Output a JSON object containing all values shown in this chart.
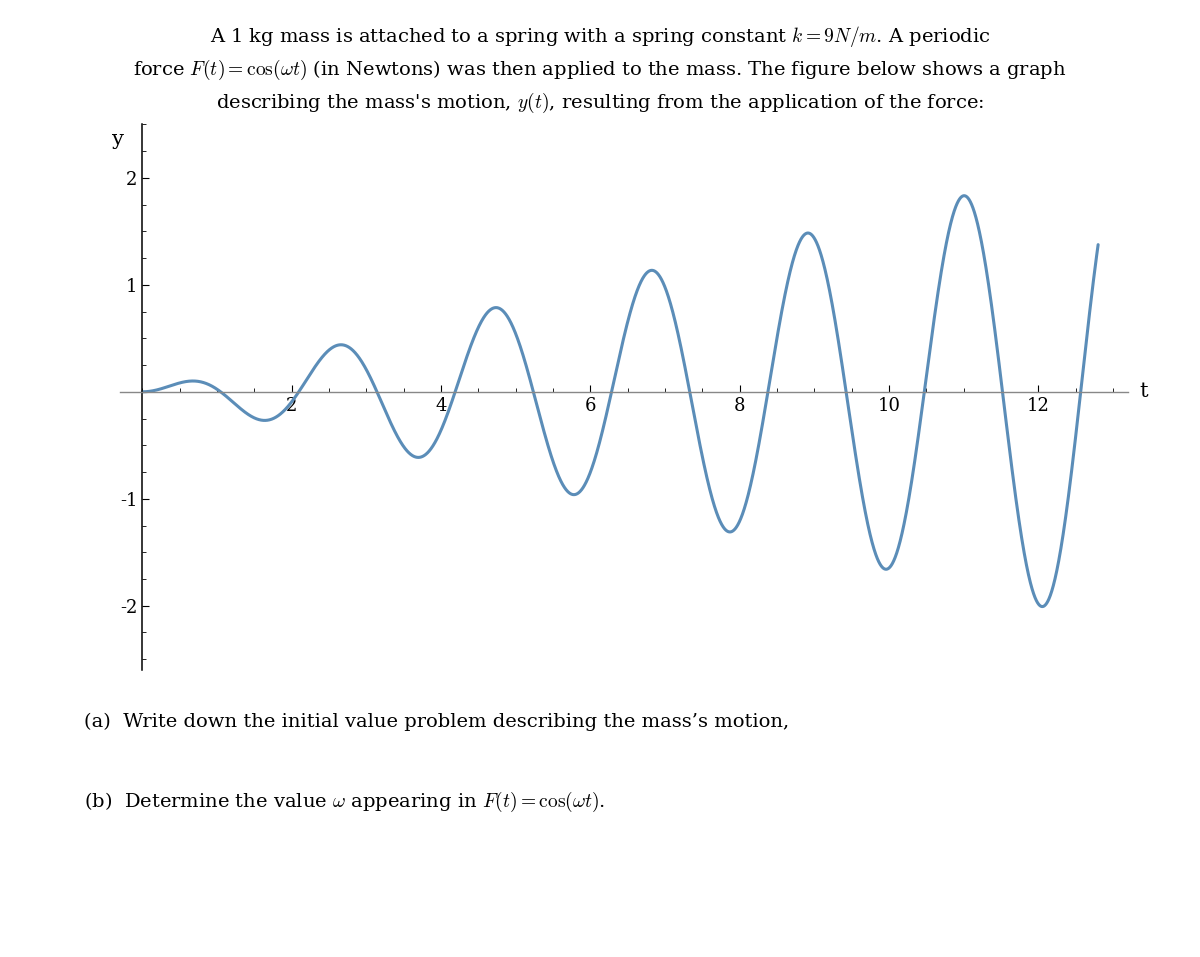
{
  "ylabel": "y",
  "xlabel": "t",
  "xlim": [
    -0.3,
    13.2
  ],
  "ylim": [
    -2.6,
    2.5
  ],
  "yticks": [
    -2,
    -1,
    1,
    2
  ],
  "xticks": [
    2,
    4,
    6,
    8,
    10,
    12
  ],
  "line_color": "#5b8db8",
  "line_width": 2.2,
  "omega_natural": 3.0,
  "t_end": 12.8,
  "question_a": "(a)  Write down the initial value problem describing the mass’s motion,",
  "question_b": "(b)  Determine the value $\\omega$ appearing in $F(t) = \\cos(\\omega t)$.",
  "background_color": "#ffffff",
  "fig_width": 12.0,
  "fig_height": 9.57
}
